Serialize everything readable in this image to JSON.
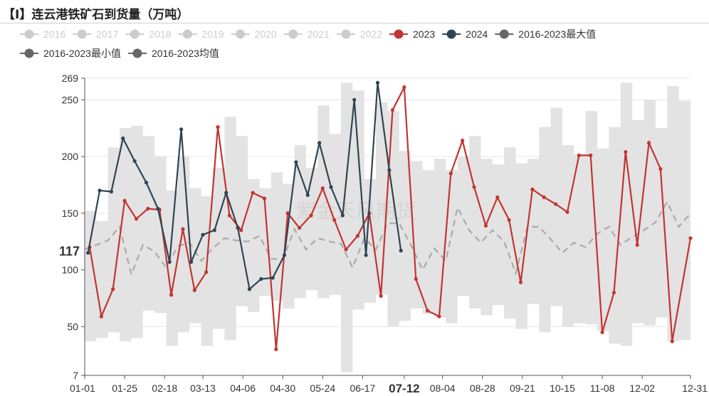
{
  "page_title": "【I】连云港铁矿石到货量（万吨）",
  "watermark": "紫金天风期货",
  "chart_data": {
    "type": "line",
    "title": "【I】连云港铁矿石到货量（万吨）",
    "xlabel": "",
    "ylabel": "",
    "ylim": [
      7,
      269
    ],
    "y_tick_labels": [
      "7",
      "50",
      "100",
      "150",
      "200",
      "250",
      "269"
    ],
    "y_ticks": [
      7,
      50,
      100,
      150,
      200,
      250,
      269
    ],
    "x_tick_labels": [
      "01-01",
      "01-25",
      "02-18",
      "03-13",
      "04-06",
      "04-30",
      "05-24",
      "06-17",
      "07-12",
      "08-04",
      "08-28",
      "09-21",
      "10-15",
      "11-08",
      "12-02",
      "12-31"
    ],
    "x_ticks": [
      "01-01",
      "01-25",
      "02-18",
      "03-13",
      "04-06",
      "04-30",
      "05-24",
      "06-17",
      "07-12",
      "08-04",
      "08-28",
      "09-21",
      "10-15",
      "11-08",
      "12-02",
      "12-31"
    ],
    "highlight": {
      "x": "07-12",
      "y": 117
    },
    "grid": true,
    "legend_position": "top",
    "legend": [
      {
        "name": "2016",
        "color": "#cccccc",
        "active": false
      },
      {
        "name": "2017",
        "color": "#cccccc",
        "active": false
      },
      {
        "name": "2018",
        "color": "#cccccc",
        "active": false
      },
      {
        "name": "2019",
        "color": "#cccccc",
        "active": false
      },
      {
        "name": "2020",
        "color": "#cccccc",
        "active": false
      },
      {
        "name": "2021",
        "color": "#cccccc",
        "active": false
      },
      {
        "name": "2022",
        "color": "#cccccc",
        "active": false
      },
      {
        "name": "2023",
        "color": "#c23531",
        "active": true
      },
      {
        "name": "2024",
        "color": "#2f4554",
        "active": true
      },
      {
        "name": "2016-2023最大值",
        "color": "#666666",
        "active": true
      },
      {
        "name": "2016-2023最小值",
        "color": "#666666",
        "active": true
      },
      {
        "name": "2016-2023均值",
        "color": "#666666",
        "active": true
      }
    ],
    "series": [
      {
        "name": "2023",
        "color": "#c23531",
        "points": [
          [
            "01-04",
            120
          ],
          [
            "01-11",
            59
          ],
          [
            "01-18",
            83
          ],
          [
            "01-25",
            161
          ],
          [
            "02-01",
            145
          ],
          [
            "02-08",
            154
          ],
          [
            "02-15",
            153
          ],
          [
            "02-22",
            78
          ],
          [
            "03-01",
            136
          ],
          [
            "03-08",
            82
          ],
          [
            "03-15",
            98
          ],
          [
            "03-22",
            226
          ],
          [
            "03-29",
            148
          ],
          [
            "04-05",
            135
          ],
          [
            "04-12",
            168
          ],
          [
            "04-19",
            163
          ],
          [
            "04-26",
            30
          ],
          [
            "05-03",
            150
          ],
          [
            "05-10",
            137
          ],
          [
            "05-17",
            148
          ],
          [
            "05-24",
            172
          ],
          [
            "05-31",
            144
          ],
          [
            "06-07",
            118
          ],
          [
            "06-14",
            130
          ],
          [
            "06-21",
            150
          ],
          [
            "06-28",
            77
          ],
          [
            "07-05",
            241
          ],
          [
            "07-12",
            261
          ],
          [
            "07-19",
            92
          ],
          [
            "07-26",
            64
          ],
          [
            "08-02",
            59
          ],
          [
            "08-09",
            185
          ],
          [
            "08-16",
            214
          ],
          [
            "08-23",
            173
          ],
          [
            "08-30",
            139
          ],
          [
            "09-06",
            164
          ],
          [
            "09-13",
            144
          ],
          [
            "09-20",
            89
          ],
          [
            "09-27",
            171
          ],
          [
            "10-04",
            164
          ],
          [
            "10-11",
            158
          ],
          [
            "10-18",
            151
          ],
          [
            "10-25",
            201
          ],
          [
            "11-01",
            201
          ],
          [
            "11-08",
            45
          ],
          [
            "11-15",
            80
          ],
          [
            "11-22",
            204
          ],
          [
            "11-29",
            122
          ],
          [
            "12-06",
            212
          ],
          [
            "12-13",
            189
          ],
          [
            "12-20",
            37
          ],
          [
            "12-31",
            128
          ]
        ]
      },
      {
        "name": "2024",
        "color": "#2f4554",
        "points": [
          [
            "01-03",
            115
          ],
          [
            "01-10",
            170
          ],
          [
            "01-17",
            169
          ],
          [
            "01-24",
            216
          ],
          [
            "01-31",
            196
          ],
          [
            "02-07",
            177
          ],
          [
            "02-14",
            154
          ],
          [
            "02-21",
            107
          ],
          [
            "02-28",
            224
          ],
          [
            "03-06",
            107
          ],
          [
            "03-13",
            131
          ],
          [
            "03-20",
            135
          ],
          [
            "03-27",
            168
          ],
          [
            "04-03",
            137
          ],
          [
            "04-10",
            83
          ],
          [
            "04-17",
            92
          ],
          [
            "04-24",
            93
          ],
          [
            "05-01",
            113
          ],
          [
            "05-08",
            195
          ],
          [
            "05-15",
            166
          ],
          [
            "05-22",
            212
          ],
          [
            "05-29",
            173
          ],
          [
            "06-05",
            148
          ],
          [
            "06-12",
            250
          ],
          [
            "06-19",
            113
          ],
          [
            "06-26",
            265
          ],
          [
            "07-03",
            188
          ],
          [
            "07-10",
            117
          ]
        ]
      },
      {
        "name": "2016-2023最大值",
        "color": "#e3e3e3",
        "points": [
          [
            "01-01",
            152
          ],
          [
            "01-08",
            143
          ],
          [
            "01-15",
            208
          ],
          [
            "01-22",
            225
          ],
          [
            "01-29",
            227
          ],
          [
            "02-05",
            218
          ],
          [
            "02-12",
            200
          ],
          [
            "02-19",
            170
          ],
          [
            "02-26",
            200
          ],
          [
            "03-05",
            172
          ],
          [
            "03-12",
            165
          ],
          [
            "03-19",
            190
          ],
          [
            "03-26",
            235
          ],
          [
            "04-02",
            218
          ],
          [
            "04-09",
            180
          ],
          [
            "04-16",
            172
          ],
          [
            "04-23",
            186
          ],
          [
            "04-30",
            176
          ],
          [
            "05-07",
            210
          ],
          [
            "05-14",
            190
          ],
          [
            "05-21",
            245
          ],
          [
            "05-28",
            220
          ],
          [
            "06-04",
            265
          ],
          [
            "06-11",
            258
          ],
          [
            "06-18",
            180
          ],
          [
            "06-25",
            248
          ],
          [
            "07-02",
            240
          ],
          [
            "07-09",
            205
          ],
          [
            "07-16",
            196
          ],
          [
            "07-23",
            188
          ],
          [
            "07-30",
            198
          ],
          [
            "08-06",
            188
          ],
          [
            "08-13",
            200
          ],
          [
            "08-20",
            218
          ],
          [
            "08-27",
            198
          ],
          [
            "09-03",
            193
          ],
          [
            "09-10",
            208
          ],
          [
            "09-17",
            194
          ],
          [
            "09-24",
            198
          ],
          [
            "10-01",
            226
          ],
          [
            "10-08",
            243
          ],
          [
            "10-15",
            210
          ],
          [
            "10-22",
            202
          ],
          [
            "10-29",
            240
          ],
          [
            "11-05",
            207
          ],
          [
            "11-12",
            226
          ],
          [
            "11-19",
            265
          ],
          [
            "11-26",
            232
          ],
          [
            "12-03",
            250
          ],
          [
            "12-10",
            225
          ],
          [
            "12-17",
            262
          ],
          [
            "12-24",
            249
          ],
          [
            "12-31",
            205
          ]
        ]
      },
      {
        "name": "2016-2023最小值",
        "color": "#e3e3e3",
        "points": [
          [
            "01-01",
            37
          ],
          [
            "01-08",
            40
          ],
          [
            "01-15",
            45
          ],
          [
            "01-22",
            37
          ],
          [
            "01-29",
            40
          ],
          [
            "02-05",
            64
          ],
          [
            "02-12",
            62
          ],
          [
            "02-19",
            33
          ],
          [
            "02-26",
            45
          ],
          [
            "03-05",
            53
          ],
          [
            "03-12",
            33
          ],
          [
            "03-19",
            48
          ],
          [
            "03-26",
            38
          ],
          [
            "04-02",
            68
          ],
          [
            "04-09",
            63
          ],
          [
            "04-16",
            77
          ],
          [
            "04-23",
            73
          ],
          [
            "04-30",
            66
          ],
          [
            "05-07",
            75
          ],
          [
            "05-14",
            82
          ],
          [
            "05-21",
            75
          ],
          [
            "05-28",
            78
          ],
          [
            "06-04",
            10
          ],
          [
            "06-11",
            65
          ],
          [
            "06-18",
            71
          ],
          [
            "06-25",
            78
          ],
          [
            "07-02",
            50
          ],
          [
            "07-09",
            55
          ],
          [
            "07-16",
            66
          ],
          [
            "07-23",
            61
          ],
          [
            "07-30",
            58
          ],
          [
            "08-06",
            53
          ],
          [
            "08-13",
            77
          ],
          [
            "08-20",
            66
          ],
          [
            "08-27",
            60
          ],
          [
            "09-03",
            69
          ],
          [
            "09-10",
            57
          ],
          [
            "09-17",
            48
          ],
          [
            "09-24",
            70
          ],
          [
            "10-01",
            45
          ],
          [
            "10-08",
            68
          ],
          [
            "10-15",
            50
          ],
          [
            "10-22",
            53
          ],
          [
            "10-29",
            52
          ],
          [
            "11-05",
            46
          ],
          [
            "11-12",
            35
          ],
          [
            "11-19",
            33
          ],
          [
            "11-26",
            53
          ],
          [
            "12-03",
            51
          ],
          [
            "12-10",
            58
          ],
          [
            "12-17",
            37
          ],
          [
            "12-24",
            38
          ],
          [
            "12-31",
            37
          ]
        ]
      },
      {
        "name": "2016-2023均值",
        "color": "#aaaaaa",
        "dashed": true,
        "points": [
          [
            "01-01",
            118
          ],
          [
            "01-08",
            122
          ],
          [
            "01-15",
            126
          ],
          [
            "01-22",
            138
          ],
          [
            "01-29",
            96
          ],
          [
            "02-05",
            122
          ],
          [
            "02-12",
            116
          ],
          [
            "02-19",
            102
          ],
          [
            "02-26",
            121
          ],
          [
            "03-05",
            124
          ],
          [
            "03-12",
            108
          ],
          [
            "03-19",
            119
          ],
          [
            "03-26",
            128
          ],
          [
            "04-02",
            126
          ],
          [
            "04-09",
            125
          ],
          [
            "04-16",
            130
          ],
          [
            "04-23",
            110
          ],
          [
            "04-30",
            109
          ],
          [
            "05-07",
            136
          ],
          [
            "05-14",
            118
          ],
          [
            "05-21",
            128
          ],
          [
            "05-28",
            125
          ],
          [
            "06-04",
            123
          ],
          [
            "06-11",
            102
          ],
          [
            "06-18",
            128
          ],
          [
            "06-25",
            118
          ],
          [
            "07-02",
            141
          ],
          [
            "07-09",
            141
          ],
          [
            "07-16",
            122
          ],
          [
            "07-23",
            100
          ],
          [
            "07-30",
            119
          ],
          [
            "08-06",
            108
          ],
          [
            "08-13",
            155
          ],
          [
            "08-20",
            135
          ],
          [
            "08-27",
            124
          ],
          [
            "09-03",
            135
          ],
          [
            "09-10",
            125
          ],
          [
            "09-17",
            97
          ],
          [
            "09-24",
            138
          ],
          [
            "10-01",
            138
          ],
          [
            "10-08",
            127
          ],
          [
            "10-15",
            115
          ],
          [
            "10-22",
            124
          ],
          [
            "10-29",
            120
          ],
          [
            "11-05",
            132
          ],
          [
            "11-12",
            138
          ],
          [
            "11-19",
            122
          ],
          [
            "11-26",
            129
          ],
          [
            "12-03",
            135
          ],
          [
            "12-10",
            142
          ],
          [
            "12-17",
            160
          ],
          [
            "12-24",
            138
          ],
          [
            "12-31",
            150
          ]
        ]
      }
    ]
  }
}
